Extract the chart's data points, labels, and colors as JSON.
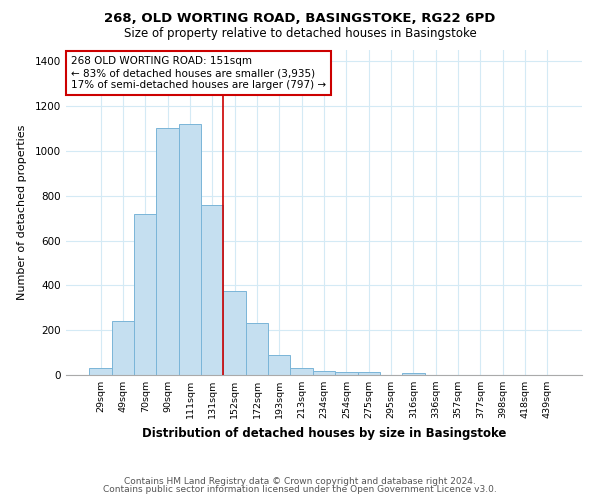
{
  "title": "268, OLD WORTING ROAD, BASINGSTOKE, RG22 6PD",
  "subtitle": "Size of property relative to detached houses in Basingstoke",
  "xlabel": "Distribution of detached houses by size in Basingstoke",
  "ylabel": "Number of detached properties",
  "bar_labels": [
    "29sqm",
    "49sqm",
    "70sqm",
    "90sqm",
    "111sqm",
    "131sqm",
    "152sqm",
    "172sqm",
    "193sqm",
    "213sqm",
    "234sqm",
    "254sqm",
    "275sqm",
    "295sqm",
    "316sqm",
    "336sqm",
    "357sqm",
    "377sqm",
    "398sqm",
    "418sqm",
    "439sqm"
  ],
  "bar_values": [
    30,
    240,
    720,
    1100,
    1120,
    760,
    375,
    230,
    90,
    30,
    20,
    15,
    15,
    0,
    10,
    0,
    0,
    0,
    0,
    0,
    0
  ],
  "bar_color": "#c5dff0",
  "bar_edge_color": "#7ab5d8",
  "vline_x_index": 6,
  "vline_color": "#cc0000",
  "annotation_text": "268 OLD WORTING ROAD: 151sqm\n← 83% of detached houses are smaller (3,935)\n17% of semi-detached houses are larger (797) →",
  "annotation_box_color": "#ffffff",
  "annotation_box_edge_color": "#cc0000",
  "annotation_fontsize": 7.5,
  "ylim": [
    0,
    1450
  ],
  "yticks": [
    0,
    200,
    400,
    600,
    800,
    1000,
    1200,
    1400
  ],
  "footer_line1": "Contains HM Land Registry data © Crown copyright and database right 2024.",
  "footer_line2": "Contains public sector information licensed under the Open Government Licence v3.0.",
  "title_fontsize": 9.5,
  "subtitle_fontsize": 8.5,
  "xlabel_fontsize": 8.5,
  "ylabel_fontsize": 8,
  "footer_fontsize": 6.5,
  "grid_color": "#d4eaf5",
  "background_color": "#ffffff"
}
